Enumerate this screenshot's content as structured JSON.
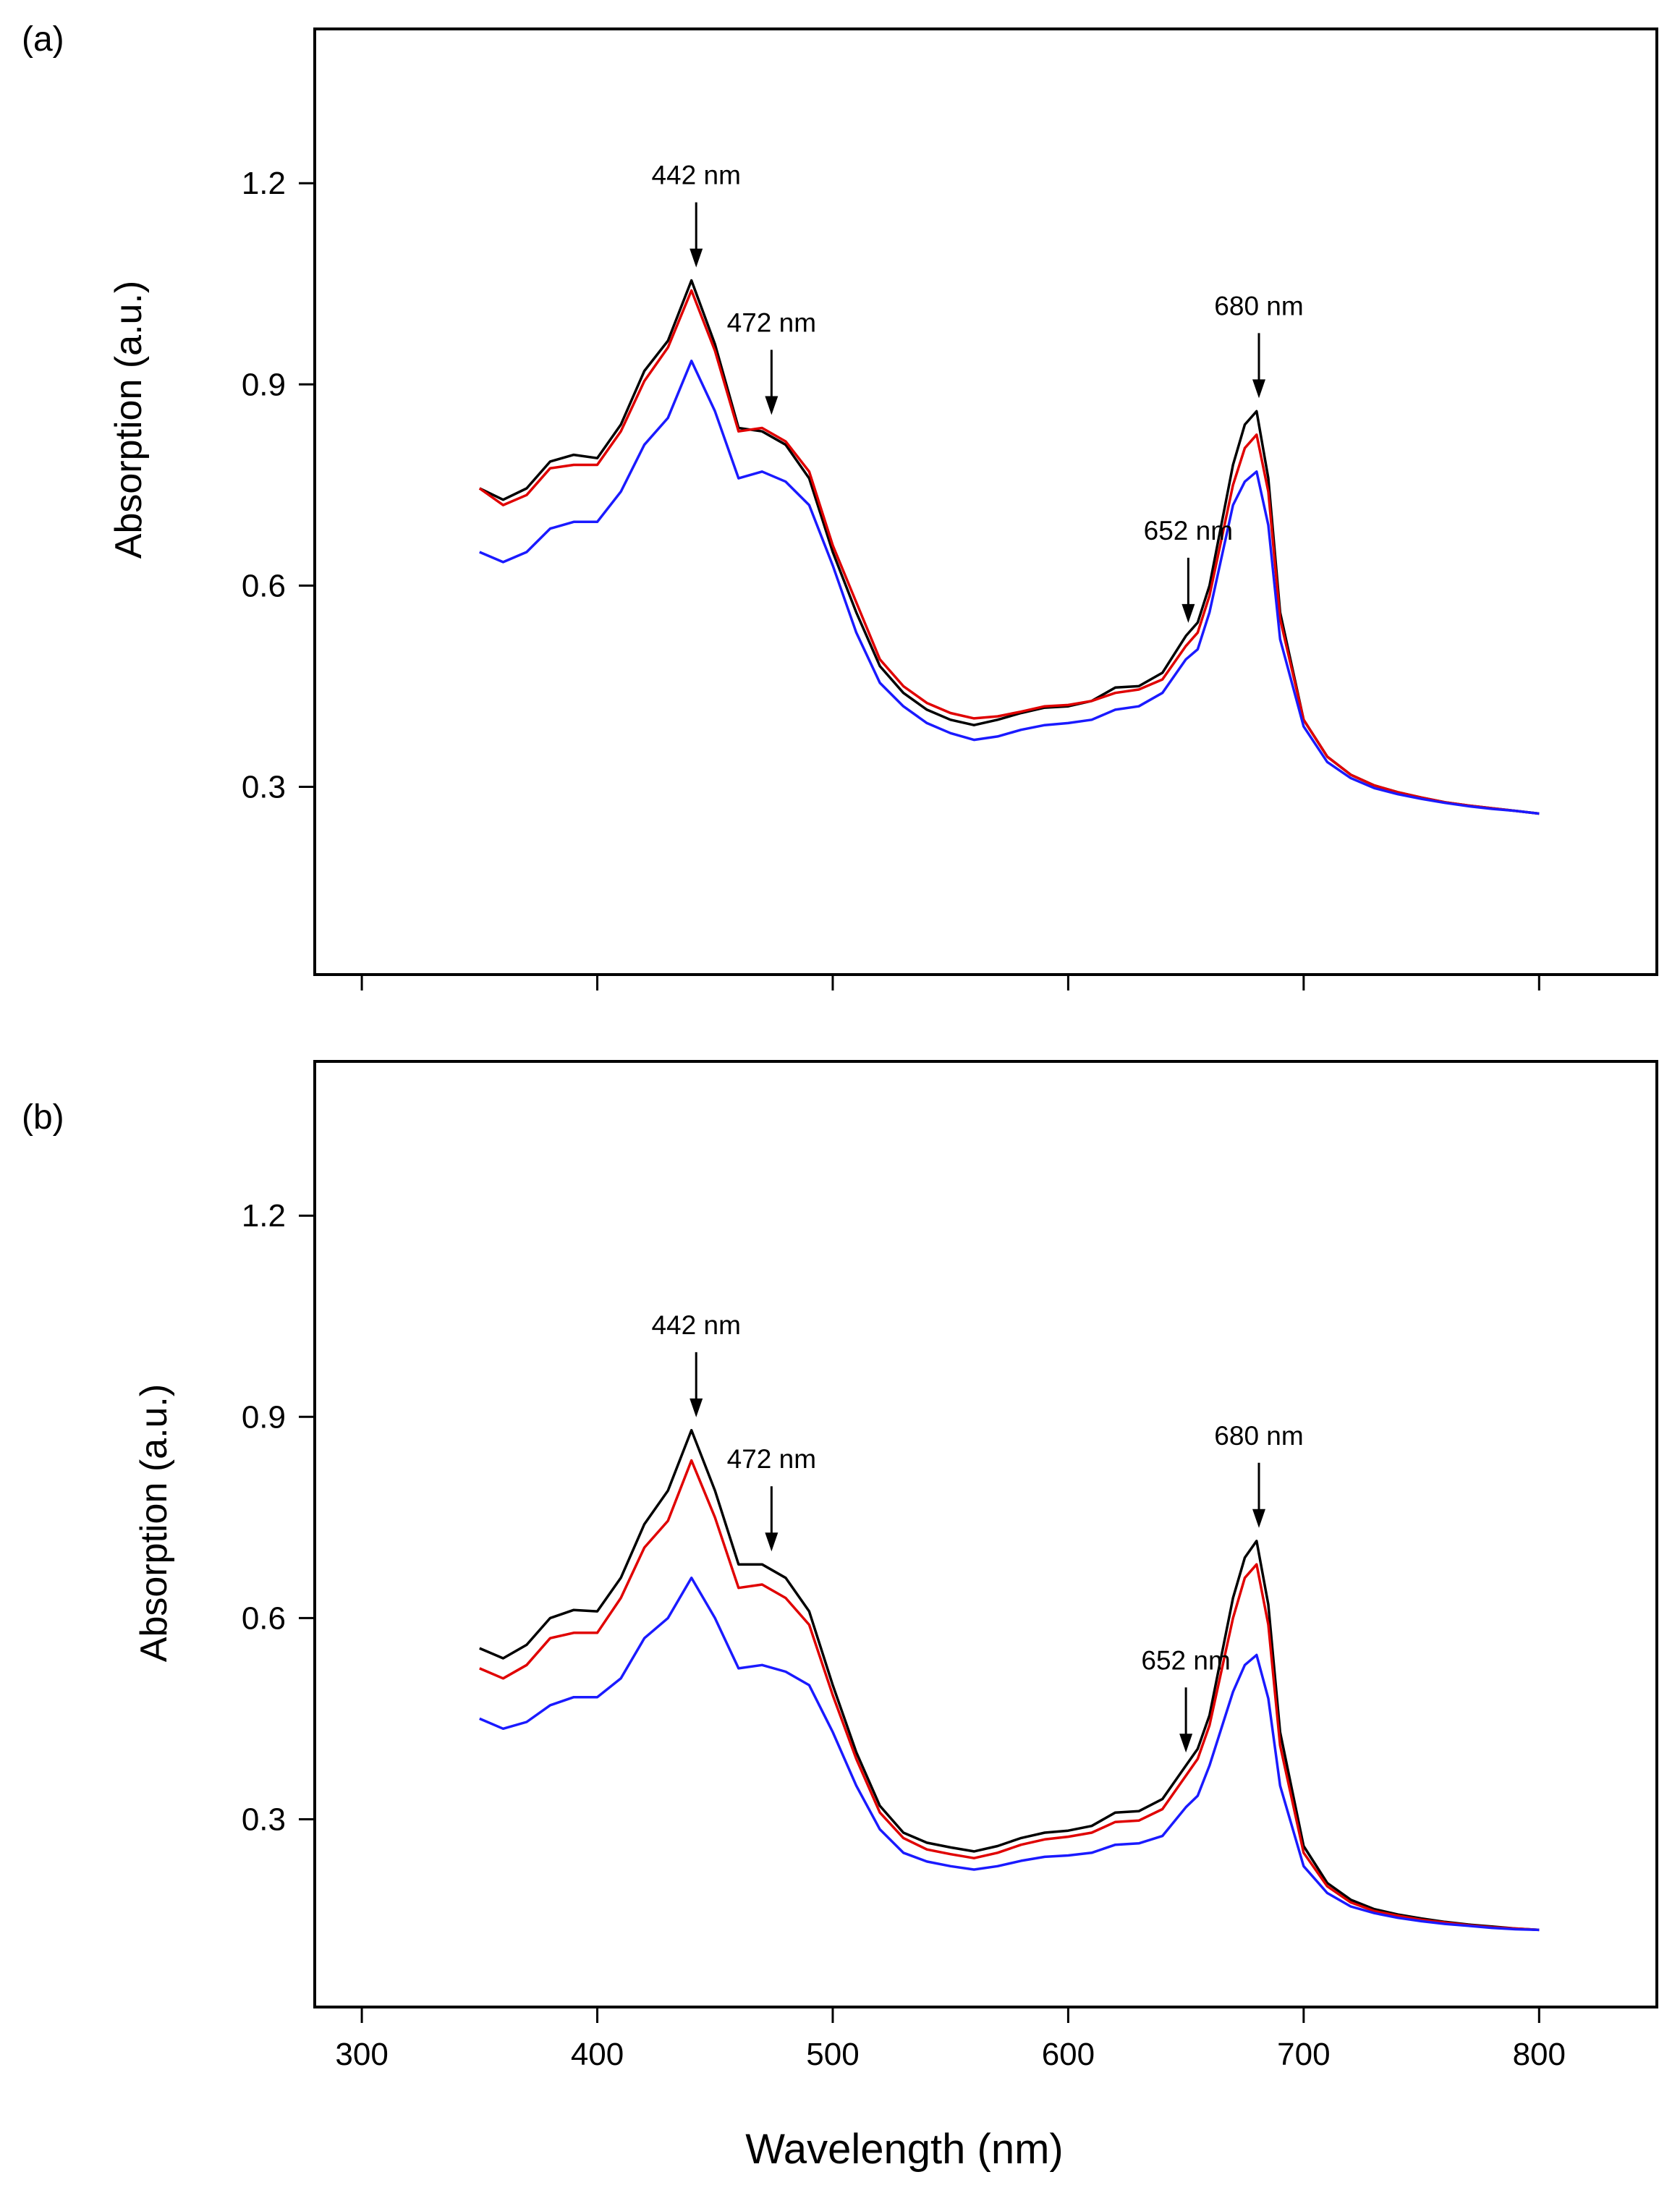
{
  "figure": {
    "xlabel": "Wavelength (nm)"
  },
  "chart_data": [
    {
      "panel": "(a)",
      "type": "line",
      "title": "",
      "xlabel": "Wavelength (nm)",
      "ylabel": "Absorption (a.u.)",
      "xlim": [
        280,
        850
      ],
      "ylim": [
        0.02,
        1.43
      ],
      "xticks": [
        300,
        400,
        500,
        600,
        700,
        800
      ],
      "xticklabels_shown": false,
      "yticks": [
        0.3,
        0.6,
        0.9,
        1.2
      ],
      "ytick_labels": [
        "0.3",
        "0.6",
        "0.9",
        "1.2"
      ],
      "legend": "none",
      "grid": false,
      "x": [
        350,
        360,
        370,
        380,
        390,
        400,
        410,
        420,
        430,
        440,
        450,
        460,
        470,
        480,
        490,
        500,
        510,
        520,
        530,
        540,
        550,
        560,
        570,
        580,
        590,
        600,
        610,
        620,
        630,
        640,
        650,
        655,
        660,
        670,
        675,
        680,
        685,
        690,
        700,
        710,
        720,
        730,
        740,
        750,
        760,
        770,
        780,
        790,
        800
      ],
      "series": [
        {
          "name": "black",
          "color": "#000000",
          "values": [
            0.745,
            0.728,
            0.745,
            0.785,
            0.795,
            0.79,
            0.84,
            0.92,
            0.965,
            1.055,
            0.96,
            0.835,
            0.83,
            0.81,
            0.76,
            0.65,
            0.56,
            0.48,
            0.44,
            0.415,
            0.4,
            0.392,
            0.4,
            0.41,
            0.418,
            0.42,
            0.428,
            0.448,
            0.45,
            0.47,
            0.525,
            0.545,
            0.6,
            0.78,
            0.84,
            0.86,
            0.76,
            0.56,
            0.4,
            0.345,
            0.318,
            0.302,
            0.292,
            0.284,
            0.277,
            0.272,
            0.268,
            0.264,
            0.26
          ]
        },
        {
          "name": "red",
          "color": "#e00000",
          "values": [
            0.745,
            0.72,
            0.735,
            0.775,
            0.78,
            0.78,
            0.83,
            0.905,
            0.955,
            1.04,
            0.95,
            0.83,
            0.835,
            0.815,
            0.77,
            0.66,
            0.575,
            0.49,
            0.45,
            0.425,
            0.41,
            0.402,
            0.405,
            0.412,
            0.42,
            0.422,
            0.428,
            0.44,
            0.445,
            0.46,
            0.51,
            0.53,
            0.585,
            0.75,
            0.805,
            0.825,
            0.74,
            0.55,
            0.4,
            0.345,
            0.318,
            0.302,
            0.292,
            0.284,
            0.277,
            0.272,
            0.268,
            0.264,
            0.26
          ]
        },
        {
          "name": "blue",
          "color": "#1a1aff",
          "values": [
            0.65,
            0.635,
            0.65,
            0.685,
            0.695,
            0.695,
            0.74,
            0.81,
            0.85,
            0.935,
            0.86,
            0.76,
            0.77,
            0.755,
            0.72,
            0.63,
            0.53,
            0.455,
            0.42,
            0.395,
            0.38,
            0.37,
            0.375,
            0.385,
            0.392,
            0.395,
            0.4,
            0.415,
            0.42,
            0.44,
            0.49,
            0.505,
            0.56,
            0.72,
            0.755,
            0.77,
            0.69,
            0.52,
            0.39,
            0.337,
            0.313,
            0.298,
            0.289,
            0.282,
            0.276,
            0.271,
            0.267,
            0.264,
            0.26
          ]
        }
      ],
      "annotations": [
        {
          "text": "442 nm",
          "x": 442,
          "y": 1.055
        },
        {
          "text": "472 nm",
          "x": 474,
          "y": 0.835
        },
        {
          "text": "652 nm",
          "x": 651,
          "y": 0.525
        },
        {
          "text": "680 nm",
          "x": 681,
          "y": 0.86
        }
      ]
    },
    {
      "panel": "(b)",
      "type": "line",
      "title": "",
      "xlabel": "Wavelength (nm)",
      "ylabel": "Absorption (a.u.)",
      "xlim": [
        280,
        850
      ],
      "ylim": [
        0.02,
        1.43
      ],
      "xticks": [
        300,
        400,
        500,
        600,
        700,
        800
      ],
      "xticklabels_shown": true,
      "xtick_labels": [
        "300",
        "400",
        "500",
        "600",
        "700",
        "800"
      ],
      "yticks": [
        0.3,
        0.6,
        0.9,
        1.2
      ],
      "ytick_labels": [
        "0.3",
        "0.6",
        "0.9",
        "1.2"
      ],
      "legend": "none",
      "grid": false,
      "x": [
        350,
        360,
        370,
        380,
        390,
        400,
        410,
        420,
        430,
        440,
        450,
        460,
        470,
        480,
        490,
        500,
        510,
        520,
        530,
        540,
        550,
        560,
        570,
        580,
        590,
        600,
        610,
        620,
        630,
        640,
        650,
        655,
        660,
        670,
        675,
        680,
        685,
        690,
        700,
        710,
        720,
        730,
        740,
        750,
        760,
        770,
        780,
        790,
        800
      ],
      "series": [
        {
          "name": "black",
          "color": "#000000",
          "values": [
            0.555,
            0.54,
            0.56,
            0.6,
            0.612,
            0.61,
            0.66,
            0.74,
            0.79,
            0.88,
            0.79,
            0.68,
            0.68,
            0.66,
            0.61,
            0.5,
            0.4,
            0.32,
            0.28,
            0.265,
            0.258,
            0.252,
            0.26,
            0.272,
            0.28,
            0.283,
            0.29,
            0.31,
            0.312,
            0.33,
            0.38,
            0.405,
            0.455,
            0.63,
            0.69,
            0.715,
            0.62,
            0.43,
            0.26,
            0.205,
            0.18,
            0.166,
            0.158,
            0.152,
            0.147,
            0.143,
            0.14,
            0.137,
            0.135
          ]
        },
        {
          "name": "red",
          "color": "#e00000",
          "values": [
            0.525,
            0.51,
            0.53,
            0.57,
            0.578,
            0.578,
            0.63,
            0.705,
            0.745,
            0.835,
            0.75,
            0.645,
            0.65,
            0.63,
            0.59,
            0.485,
            0.39,
            0.31,
            0.272,
            0.255,
            0.248,
            0.242,
            0.25,
            0.262,
            0.27,
            0.274,
            0.28,
            0.296,
            0.298,
            0.315,
            0.365,
            0.39,
            0.44,
            0.6,
            0.66,
            0.68,
            0.59,
            0.41,
            0.25,
            0.2,
            0.176,
            0.163,
            0.156,
            0.15,
            0.146,
            0.142,
            0.139,
            0.137,
            0.135
          ]
        },
        {
          "name": "blue",
          "color": "#1a1aff",
          "values": [
            0.45,
            0.435,
            0.445,
            0.47,
            0.482,
            0.482,
            0.51,
            0.57,
            0.6,
            0.66,
            0.6,
            0.525,
            0.53,
            0.52,
            0.5,
            0.43,
            0.35,
            0.285,
            0.25,
            0.237,
            0.23,
            0.225,
            0.23,
            0.238,
            0.244,
            0.246,
            0.25,
            0.262,
            0.264,
            0.275,
            0.318,
            0.335,
            0.38,
            0.49,
            0.53,
            0.545,
            0.48,
            0.35,
            0.23,
            0.19,
            0.17,
            0.16,
            0.153,
            0.148,
            0.144,
            0.141,
            0.138,
            0.136,
            0.135
          ]
        }
      ],
      "annotations": [
        {
          "text": "442 nm",
          "x": 442,
          "y": 0.88
        },
        {
          "text": "472 nm",
          "x": 474,
          "y": 0.68
        },
        {
          "text": "652 nm",
          "x": 650,
          "y": 0.38
        },
        {
          "text": "680 nm",
          "x": 681,
          "y": 0.715
        }
      ]
    }
  ]
}
